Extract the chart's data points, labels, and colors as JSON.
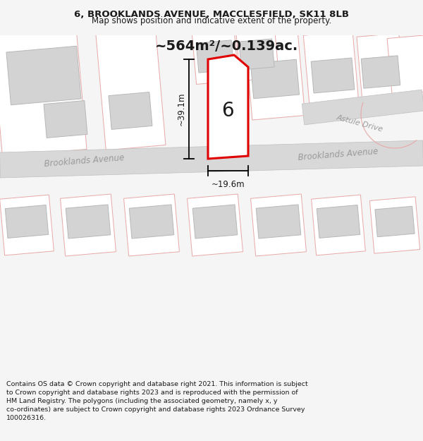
{
  "title_line1": "6, BROOKLANDS AVENUE, MACCLESFIELD, SK11 8LB",
  "title_line2": "Map shows position and indicative extent of the property.",
  "area_text": "~564m²/~0.139ac.",
  "number_label": "6",
  "dim_width": "~19.6m",
  "dim_height": "~39.1m",
  "road_label_left": "Brooklands Avenue",
  "road_label_right": "Brooklands Avenue",
  "road_label_astule": "Astule Drive",
  "footer_text": "Contains OS data © Crown copyright and database right 2021. This information is subject to Crown copyright and database rights 2023 and is reproduced with the permission of HM Land Registry. The polygons (including the associated geometry, namely x, y co-ordinates) are subject to Crown copyright and database rights 2023 Ordnance Survey 100026316.",
  "bg_color": "#f5f5f5",
  "map_bg_color": "#ffffff",
  "road_fill": "#d8d8d8",
  "road_edge": "#c0c0c0",
  "building_fill": "#d3d3d3",
  "building_edge": "#b8b8b8",
  "pink_line": "#e8a8a8",
  "highlight_color": "#e00000",
  "highlight_fill": "#ffffff",
  "dim_color": "#000000",
  "text_color": "#1a1a1a",
  "road_text_color": "#9a9a9a",
  "title_fontsize": 9.5,
  "subtitle_fontsize": 8.5,
  "area_fontsize": 14,
  "label_fontsize": 8.5,
  "number_fontsize": 20,
  "footer_fontsize": 6.8
}
